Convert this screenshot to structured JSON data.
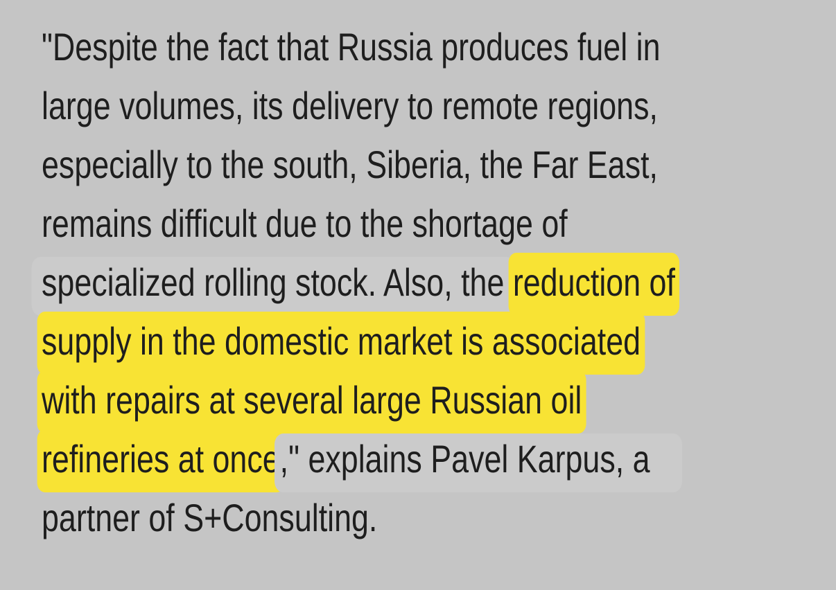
{
  "page": {
    "background_color": "#c5c5c5",
    "text_color": "#1e1e1e",
    "highlight_color": "#f8e334",
    "mask_color": "#cbcbcb"
  },
  "quote_paragraph": {
    "lines": [
      {
        "segments": [
          {
            "type": "plain",
            "text": "\"Despite the fact that Russia produces fuel in"
          }
        ]
      },
      {
        "segments": [
          {
            "type": "plain",
            "text": "large volumes, its delivery to remote regions,"
          }
        ]
      },
      {
        "segments": [
          {
            "type": "plain",
            "text": "especially to the south, Siberia, the Far East,"
          }
        ]
      },
      {
        "segments": [
          {
            "type": "plain",
            "text": "remains difficult due to the shortage of"
          }
        ]
      },
      {
        "segments": [
          {
            "type": "mask_start",
            "text": "specialized rolling stock. Also, the "
          },
          {
            "type": "highlight",
            "text": "reduction of"
          }
        ]
      },
      {
        "segments": [
          {
            "type": "highlight",
            "text": "supply in the domestic market is associated"
          }
        ]
      },
      {
        "segments": [
          {
            "type": "highlight",
            "text": "with repairs at several large Russian oil"
          }
        ]
      },
      {
        "segments": [
          {
            "type": "highlight",
            "text": "refineries at once"
          },
          {
            "type": "mask_end",
            "text": ",\" explains Pavel Karpus, a"
          }
        ]
      },
      {
        "segments": [
          {
            "type": "plain",
            "text": "partner of S+Consulting."
          }
        ]
      }
    ]
  }
}
